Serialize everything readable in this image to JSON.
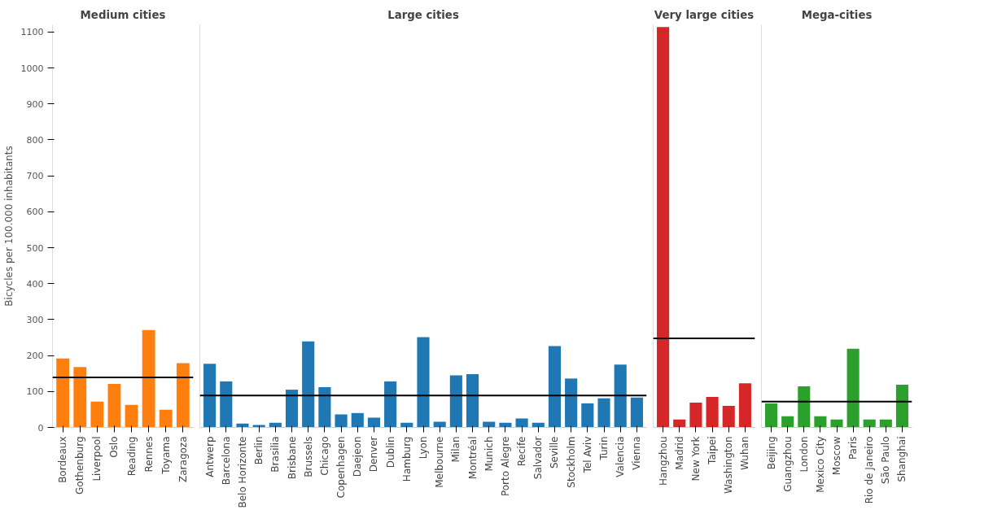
{
  "chart_data": [
    {
      "type": "bar",
      "title": "Medium cities",
      "ylabel": "Bicycles per 100.000 inhabitants",
      "categories": [
        "Bordeaux",
        "Gothenburg",
        "Liverpool",
        "Oslo",
        "Reading",
        "Rennes",
        "Toyama",
        "Zaragoza"
      ],
      "values": [
        192,
        168,
        72,
        121,
        63,
        271,
        49,
        179
      ],
      "color": "#ff7f0e",
      "ylim": [
        0,
        1120
      ],
      "yticks": [
        0,
        100,
        200,
        300,
        400,
        500,
        600,
        700,
        800,
        900,
        1000,
        1100
      ],
      "ref_lines": [
        {
          "axis": "y",
          "value": 139,
          "color": "#000000"
        }
      ]
    },
    {
      "type": "bar",
      "title": "Large cities",
      "categories": [
        "Antwerp",
        "Barcelona",
        "Belo Horizonte",
        "Berlin",
        "Brasilia",
        "Brisbane",
        "Brussels",
        "Chicago",
        "Copenhagen",
        "Daejeon",
        "Denver",
        "Dublin",
        "Hamburg",
        "Lyon",
        "Melbourne",
        "Milan",
        "Montréal",
        "Munich",
        "Porto Alegre",
        "Recife",
        "Salvador",
        "Seville",
        "Stockholm",
        "Tel Aviv",
        "Turin",
        "Valencia",
        "Vienna"
      ],
      "values": [
        177,
        128,
        11,
        7,
        13,
        105,
        239,
        112,
        36,
        40,
        27,
        128,
        13,
        251,
        16,
        145,
        148,
        16,
        13,
        25,
        13,
        226,
        136,
        67,
        81,
        175,
        83
      ],
      "color": "#1f77b4",
      "ylim": [
        0,
        1120
      ],
      "yticks": [
        0,
        100,
        200,
        300,
        400,
        500,
        600,
        700,
        800,
        900,
        1000,
        1100
      ],
      "tick_labels": "x",
      "ref_lines": [
        {
          "axis": "y",
          "value": 89,
          "color": "#000000"
        }
      ]
    },
    {
      "type": "bar",
      "title": "Very large cities",
      "categories": [
        "Hangzhou",
        "Madrid",
        "New York",
        "Taipei",
        "Washington",
        "Wuhan"
      ],
      "values": [
        1114,
        22,
        69,
        85,
        60,
        123
      ],
      "color": "#d62728",
      "ylim": [
        0,
        1120
      ],
      "yticks": [
        0,
        100,
        200,
        300,
        400,
        500,
        600,
        700,
        800,
        900,
        1000,
        1100
      ],
      "tick_labels": "x",
      "ref_lines": [
        {
          "axis": "y",
          "value": 248,
          "color": "#000000"
        }
      ]
    },
    {
      "type": "bar",
      "title": "Mega-cities",
      "categories": [
        "Beijing",
        "Guangzhou",
        "London",
        "Mexico City",
        "Moscow",
        "Paris",
        "Rio de Janeiro",
        "São Paulo",
        "Shanghai"
      ],
      "values": [
        67,
        31,
        114,
        31,
        22,
        219,
        22,
        22,
        119
      ],
      "color": "#2ca02c",
      "ylim": [
        0,
        1120
      ],
      "yticks": [
        0,
        100,
        200,
        300,
        400,
        500,
        600,
        700,
        800,
        900,
        1000,
        1100
      ],
      "tick_labels": "x",
      "ref_lines": [
        {
          "axis": "y",
          "value": 72,
          "color": "#000000"
        }
      ]
    }
  ]
}
